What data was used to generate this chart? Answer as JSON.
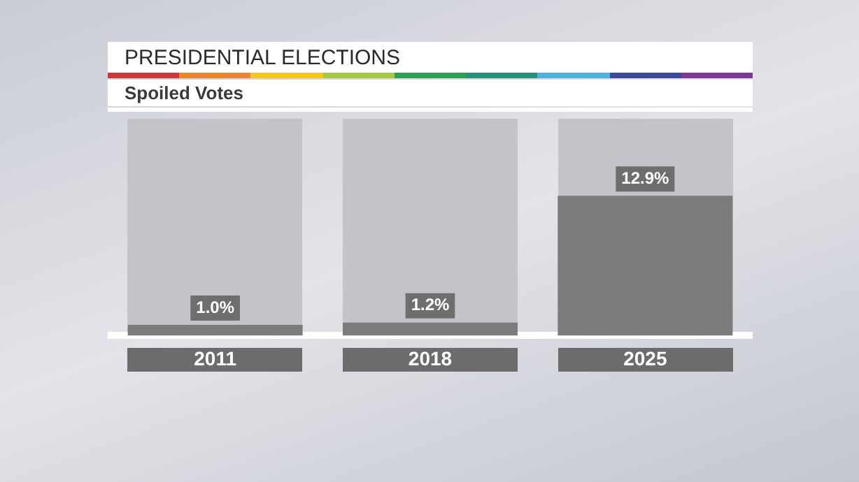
{
  "chart_data": {
    "type": "bar",
    "title": "PRESIDENTIAL ELECTIONS",
    "subtitle": "Spoiled Votes",
    "categories": [
      "2011",
      "2018",
      "2025"
    ],
    "values": [
      1.0,
      1.2,
      12.9
    ],
    "color": "#7b7b7b",
    "value_labels": [
      "1.0%",
      "1.2%",
      "12.9%"
    ],
    "grid": false,
    "legend": false
  }
}
